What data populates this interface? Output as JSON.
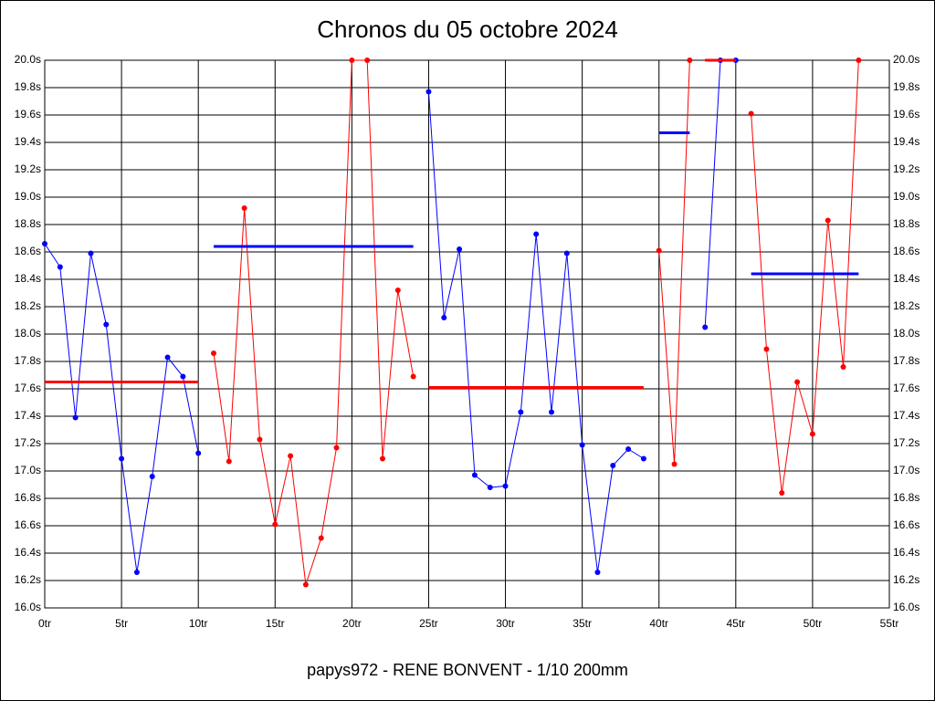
{
  "chart_data": {
    "type": "line",
    "title": "Chronos du 05 octobre 2024",
    "subtitle": "papys972 - RENE BONVENT - 1/10 200mm",
    "xlim": [
      0,
      55
    ],
    "xticks": [
      {
        "value": 0,
        "label": "0tr"
      },
      {
        "value": 5,
        "label": "5tr"
      },
      {
        "value": 10,
        "label": "10tr"
      },
      {
        "value": 15,
        "label": "15tr"
      },
      {
        "value": 20,
        "label": "20tr"
      },
      {
        "value": 25,
        "label": "25tr"
      },
      {
        "value": 30,
        "label": "30tr"
      },
      {
        "value": 35,
        "label": "35tr"
      },
      {
        "value": 40,
        "label": "40tr"
      },
      {
        "value": 45,
        "label": "45tr"
      },
      {
        "value": 50,
        "label": "50tr"
      },
      {
        "value": 55,
        "label": "55tr"
      }
    ],
    "ylim": [
      16.0,
      20.0
    ],
    "yticks": [
      {
        "value": 16.0,
        "label": "16.0s"
      },
      {
        "value": 16.2,
        "label": "16.2s"
      },
      {
        "value": 16.4,
        "label": "16.4s"
      },
      {
        "value": 16.6,
        "label": "16.6s"
      },
      {
        "value": 16.8,
        "label": "16.8s"
      },
      {
        "value": 17.0,
        "label": "17.0s"
      },
      {
        "value": 17.2,
        "label": "17.2s"
      },
      {
        "value": 17.4,
        "label": "17.4s"
      },
      {
        "value": 17.6,
        "label": "17.6s"
      },
      {
        "value": 17.8,
        "label": "17.8s"
      },
      {
        "value": 18.0,
        "label": "18.0s"
      },
      {
        "value": 18.2,
        "label": "18.2s"
      },
      {
        "value": 18.4,
        "label": "18.4s"
      },
      {
        "value": 18.6,
        "label": "18.6s"
      },
      {
        "value": 18.8,
        "label": "18.8s"
      },
      {
        "value": 19.0,
        "label": "19.0s"
      },
      {
        "value": 19.2,
        "label": "19.2s"
      },
      {
        "value": 19.4,
        "label": "19.4s"
      },
      {
        "value": 19.6,
        "label": "19.6s"
      },
      {
        "value": 19.8,
        "label": "19.8s"
      },
      {
        "value": 20.0,
        "label": "20.0s"
      }
    ],
    "grid": true,
    "series": [
      {
        "color": "#0000ff",
        "mean_color": "#ff0000",
        "x": [
          0,
          1,
          2,
          3,
          4,
          5,
          6,
          7,
          8,
          9,
          10
        ],
        "values": [
          18.66,
          18.49,
          17.39,
          18.59,
          18.07,
          17.09,
          16.26,
          16.96,
          17.83,
          17.69,
          17.13
        ],
        "mean": 17.65
      },
      {
        "color": "#ff0000",
        "mean_color": "#0000ff",
        "x": [
          11,
          12,
          13,
          14,
          15,
          16,
          17,
          18,
          19,
          20,
          21,
          22,
          23,
          24
        ],
        "values": [
          17.86,
          17.07,
          18.92,
          17.23,
          16.61,
          17.11,
          16.17,
          16.51,
          17.17,
          20.0,
          20.0,
          17.09,
          18.32,
          17.69
        ],
        "mean": 18.64
      },
      {
        "color": "#0000ff",
        "mean_color": "#ff0000",
        "x": [
          25,
          26,
          27,
          28,
          29,
          30,
          31,
          32,
          33,
          34,
          35,
          36,
          37,
          38,
          39
        ],
        "values": [
          19.77,
          18.12,
          18.62,
          16.97,
          16.88,
          16.89,
          17.43,
          18.73,
          17.43,
          18.59,
          17.19,
          16.26,
          17.04,
          17.16,
          17.09
        ],
        "mean": 17.61
      },
      {
        "color": "#ff0000",
        "mean_color": "#0000ff",
        "x": [
          40,
          41,
          42
        ],
        "values": [
          18.61,
          17.05,
          20.0
        ],
        "mean": 19.47
      },
      {
        "color": "#0000ff",
        "mean_color": "#ff0000",
        "x": [
          43,
          44,
          45
        ],
        "values": [
          18.05,
          20.0,
          20.0
        ],
        "mean": 20.0
      },
      {
        "color": "#ff0000",
        "mean_color": "#0000ff",
        "x": [
          46,
          47,
          48,
          49,
          50,
          51,
          52,
          53
        ],
        "values": [
          19.61,
          17.89,
          16.84,
          17.65,
          17.27,
          18.83,
          17.76,
          20.0
        ],
        "mean": 18.44
      }
    ]
  }
}
